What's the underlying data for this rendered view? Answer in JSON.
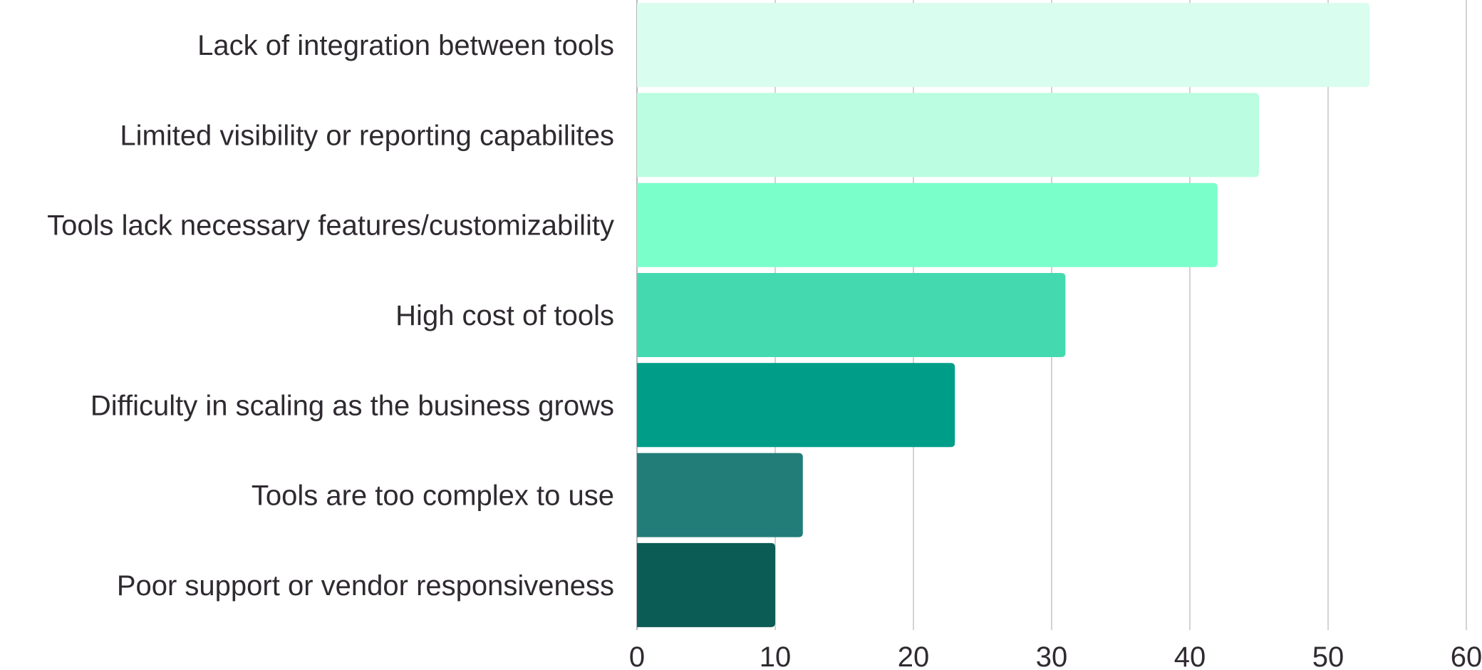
{
  "chart_data": {
    "type": "bar",
    "orientation": "horizontal",
    "title": "",
    "xlabel": "",
    "ylabel": "",
    "categories": [
      "Lack of integration between tools",
      "Limited visibility or reporting capabilites",
      "Tools lack necessary features/customizability",
      "High cost of tools",
      "Difficulty in scaling as the business grows",
      "Tools are too complex to use",
      "Poor support or vendor responsiveness"
    ],
    "values": [
      53,
      45,
      42,
      31,
      23,
      12,
      10
    ],
    "bar_colors": [
      "#d9fdee",
      "#bafde0",
      "#7bffca",
      "#45d9b0",
      "#009e89",
      "#227d79",
      "#0b5c55"
    ],
    "xlim": [
      0,
      60
    ],
    "xticks": [
      "0",
      "10",
      "20",
      "30",
      "40",
      "50",
      "60"
    ],
    "grid": true,
    "legend": "none"
  }
}
